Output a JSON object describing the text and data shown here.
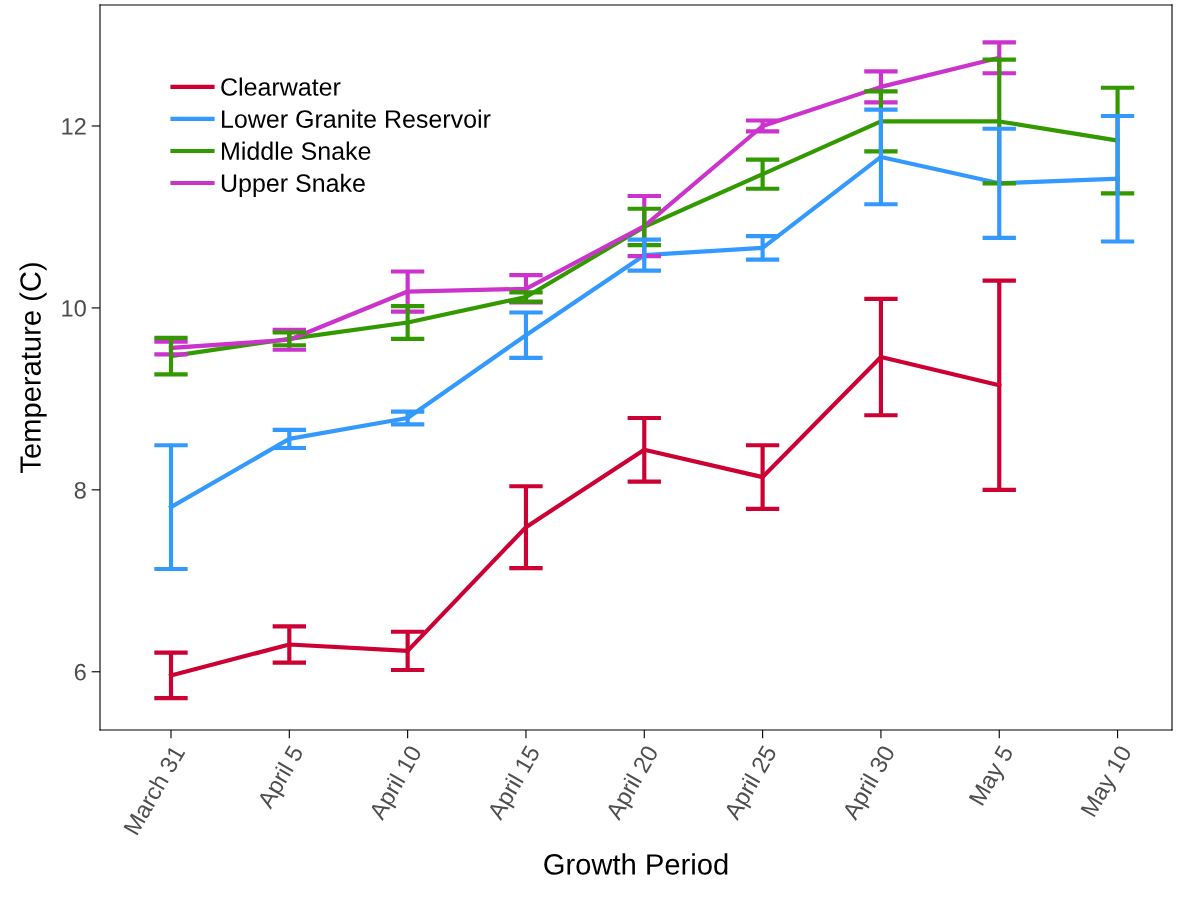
{
  "chart_data": {
    "type": "line",
    "xlabel": "Growth Period",
    "ylabel": "Temperature (C)",
    "categories": [
      "March 31",
      "April 5",
      "April 10",
      "April 15",
      "April 20",
      "April 25",
      "April 30",
      "May 5",
      "May 10"
    ],
    "ylim": [
      5.36,
      13.33
    ],
    "yticks": [
      6,
      8,
      10,
      12
    ],
    "grid": false,
    "legend": "top left",
    "marker": "none",
    "line_style": "solid",
    "series": [
      {
        "name": "Clearwater",
        "color": "#cc0033",
        "values": [
          5.96,
          6.3,
          6.23,
          7.59,
          8.44,
          8.14,
          9.46,
          9.15,
          null
        ],
        "errors": [
          0.25,
          0.2,
          0.21,
          0.45,
          0.35,
          0.35,
          0.64,
          1.15,
          null
        ]
      },
      {
        "name": "Lower Granite Reservoir",
        "color": "#3399ff",
        "values": [
          7.81,
          8.56,
          8.79,
          9.7,
          10.58,
          10.66,
          11.66,
          11.37,
          11.42
        ],
        "errors": [
          0.68,
          0.1,
          0.07,
          0.25,
          0.17,
          0.13,
          0.52,
          0.6,
          0.69
        ]
      },
      {
        "name": "Middle Snake",
        "color": "#339900",
        "values": [
          9.47,
          9.66,
          9.84,
          10.12,
          10.89,
          11.47,
          12.05,
          12.05,
          11.84
        ],
        "errors": [
          0.2,
          0.07,
          0.18,
          0.05,
          0.2,
          0.16,
          0.33,
          0.68,
          0.58
        ]
      },
      {
        "name": "Upper Snake",
        "color": "#cc33cc",
        "values": [
          9.56,
          9.65,
          10.18,
          10.21,
          10.9,
          12.0,
          12.43,
          12.75,
          null
        ],
        "errors": [
          0.07,
          0.11,
          0.22,
          0.15,
          0.33,
          0.06,
          0.17,
          0.17,
          null
        ]
      }
    ]
  }
}
